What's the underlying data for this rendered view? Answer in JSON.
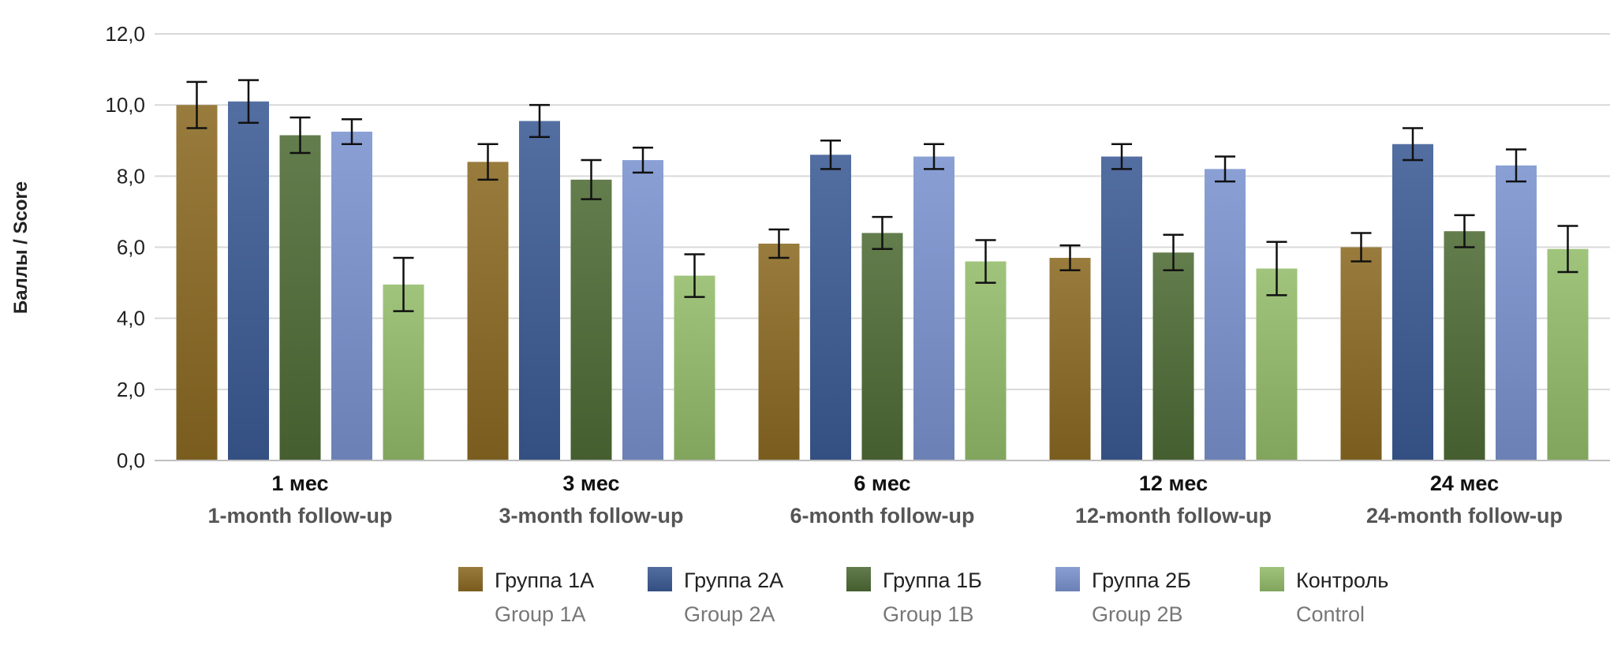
{
  "chart_data": {
    "type": "bar",
    "ylabel": "Баллы / Score",
    "ylim": [
      0,
      12
    ],
    "yticks": [
      "0,0",
      "2,0",
      "4,0",
      "6,0",
      "8,0",
      "10,0",
      "12,0"
    ],
    "grid": true,
    "legend_position": "bottom",
    "error_bars": true,
    "categories": [
      {
        "ru": "1 мес",
        "en": "1-month follow-up"
      },
      {
        "ru": "3 мес",
        "en": "3-month follow-up"
      },
      {
        "ru": "6 мес",
        "en": "6-month follow-up"
      },
      {
        "ru": "12 мес",
        "en": "12-month follow-up"
      },
      {
        "ru": "24 мес",
        "en": "24-month follow-up"
      }
    ],
    "series": [
      {
        "name": "Группа 1А",
        "name_en": "Group 1A",
        "color": "#8B6A22",
        "values": [
          10.0,
          8.4,
          6.1,
          5.7,
          6.0
        ],
        "errors": [
          0.65,
          0.5,
          0.4,
          0.35,
          0.4
        ]
      },
      {
        "name": "Группа 2А",
        "name_en": "Group 2A",
        "color": "#3B5A94",
        "values": [
          10.1,
          9.55,
          8.6,
          8.55,
          8.9
        ],
        "errors": [
          0.6,
          0.45,
          0.4,
          0.35,
          0.45
        ]
      },
      {
        "name": "Группа 1Б",
        "name_en": "Group 1B",
        "color": "#4E6B35",
        "values": [
          9.15,
          7.9,
          6.4,
          5.85,
          6.45
        ],
        "errors": [
          0.5,
          0.55,
          0.45,
          0.5,
          0.45
        ]
      },
      {
        "name": "Группа 2Б",
        "name_en": "Group 2B",
        "color": "#7A93CF",
        "values": [
          9.25,
          8.45,
          8.55,
          8.2,
          8.3
        ],
        "errors": [
          0.35,
          0.35,
          0.35,
          0.35,
          0.45
        ]
      },
      {
        "name": "Контроль",
        "name_en": "Control",
        "color": "#93BC6A",
        "values": [
          4.95,
          5.2,
          5.6,
          5.4,
          5.95
        ],
        "errors": [
          0.75,
          0.6,
          0.6,
          0.75,
          0.65
        ]
      }
    ]
  }
}
